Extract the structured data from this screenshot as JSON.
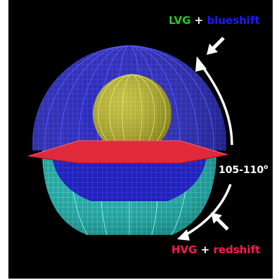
{
  "colors": {
    "background": "#000000",
    "lvg": "#22cc22",
    "blueshift": "#1a1aff",
    "hvg": "#ff1a4d",
    "redshift": "#ff1a4d",
    "plus": "#ffffff",
    "blue_shell": "#2424c8",
    "teal_shell": "#22c9c0",
    "core_sphere": "#c9c430",
    "disk": "#e02a3c",
    "arrows": "#ffffff"
  },
  "labels": {
    "top": {
      "first": "LVG",
      "plus": "+",
      "second": "blueshift"
    },
    "bottom": {
      "first": "HVG",
      "plus": "+",
      "second": "redshift"
    },
    "angle": {
      "value": "105-110",
      "superscript": "o"
    }
  },
  "icons": {
    "top_pointer": "arrow-down-left-icon",
    "bottom_pointer": "arrow-up-left-icon",
    "curved_arrow": "curved-double-arrow-icon"
  }
}
